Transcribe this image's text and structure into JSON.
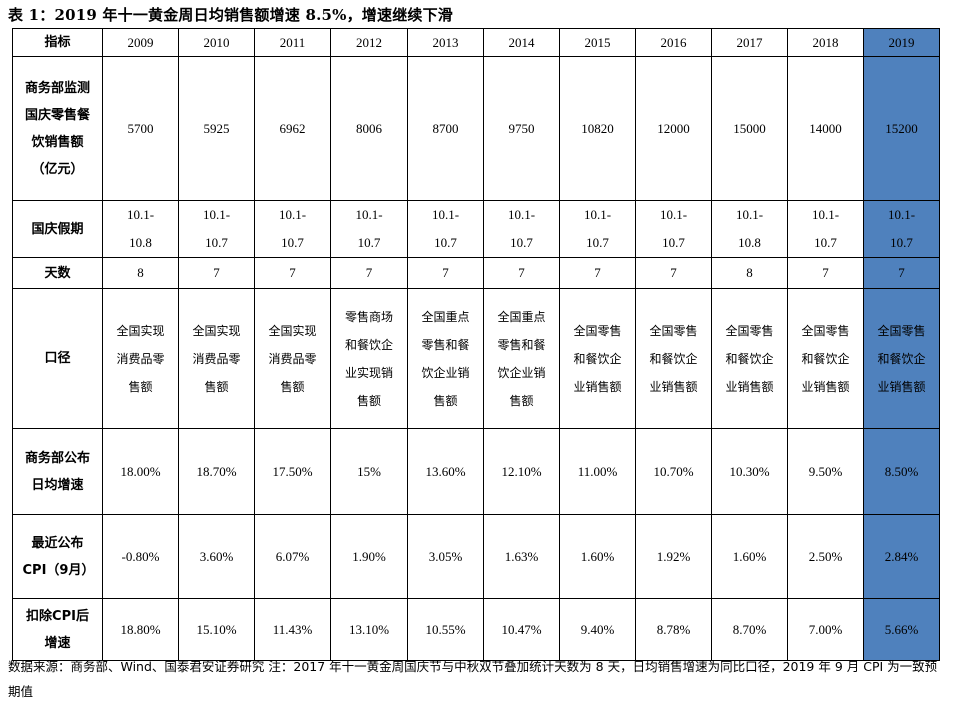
{
  "title": "表 1：2019 年十一黄金周日均销售额增速 8.5%，增速继续下滑",
  "table": {
    "header_label": "指标",
    "years": [
      "2009",
      "2010",
      "2011",
      "2012",
      "2013",
      "2014",
      "2015",
      "2016",
      "2017",
      "2018",
      "2019"
    ],
    "rows": [
      {
        "label": "商务部监测国庆零售餐饮销售额（亿元）",
        "values": [
          "5700",
          "5925",
          "6962",
          "8006",
          "8700",
          "9750",
          "10820",
          "12000",
          "15000",
          "14000",
          "15200"
        ]
      },
      {
        "label": "国庆假期",
        "values": [
          "10.1-10.8",
          "10.1-10.7",
          "10.1-10.7",
          "10.1-10.7",
          "10.1-10.7",
          "10.1-10.7",
          "10.1-10.7",
          "10.1-10.7",
          "10.1-10.8",
          "10.1-10.7",
          "10.1-10.7"
        ]
      },
      {
        "label": "天数",
        "values": [
          "8",
          "7",
          "7",
          "7",
          "7",
          "7",
          "7",
          "7",
          "8",
          "7",
          "7"
        ]
      },
      {
        "label": "口径",
        "values": [
          "全国实现消费品零售额",
          "全国实现消费品零售额",
          "全国实现消费品零售额",
          "零售商场和餐饮企业实现销售额",
          "全国重点零售和餐饮企业销售额",
          "全国重点零售和餐饮企业销售额",
          "全国零售和餐饮企业销售额",
          "全国零售和餐饮企业销售额",
          "全国零售和餐饮企业销售额",
          "全国零售和餐饮企业销售额",
          "全国零售和餐饮企业销售额"
        ]
      },
      {
        "label": "商务部公布日均增速",
        "values": [
          "18.00%",
          "18.70%",
          "17.50%",
          "15%",
          "13.60%",
          "12.10%",
          "11.00%",
          "10.70%",
          "10.30%",
          "9.50%",
          "8.50%"
        ]
      },
      {
        "label": "最近公布CPI（9月）",
        "values": [
          "-0.80%",
          "3.60%",
          "6.07%",
          "1.90%",
          "3.05%",
          "1.63%",
          "1.60%",
          "1.92%",
          "1.60%",
          "2.50%",
          "2.84%"
        ]
      },
      {
        "label": "扣除CPI后增速",
        "values": [
          "18.80%",
          "15.10%",
          "11.43%",
          "13.10%",
          "10.55%",
          "10.47%",
          "9.40%",
          "8.78%",
          "8.70%",
          "7.00%",
          "5.66%"
        ]
      }
    ]
  },
  "source": "数据来源：商务部、Wind、国泰君安证券研究 注：2017 年十一黄金周国庆节与中秋双节叠加统计天数为 8 天，日均销售增速为同比口径，2019 年 9 月 CPI 为一致预期值",
  "colors": {
    "highlight": "#4f81bd"
  }
}
